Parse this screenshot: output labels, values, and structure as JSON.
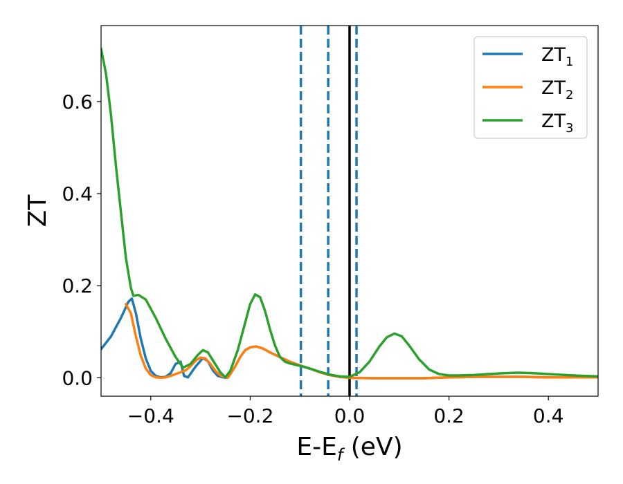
{
  "chart_data": {
    "type": "line",
    "xlabel": "E-E",
    "xlabel_sub": "f",
    "xlabel_unit": " (eV)",
    "ylabel": "ZT",
    "xlim": [
      -0.5,
      0.5
    ],
    "ylim": [
      -0.04,
      0.765
    ],
    "xticks": [
      -0.4,
      -0.2,
      0.0,
      0.2,
      0.4
    ],
    "xtick_labels": [
      "−0.4",
      "−0.2",
      "0.0",
      "0.2",
      "0.4"
    ],
    "yticks": [
      0.0,
      0.2,
      0.4,
      0.6
    ],
    "ytick_labels": [
      "0.0",
      "0.2",
      "0.4",
      "0.6"
    ],
    "grid": false,
    "legend_position": "top-right",
    "vertical_lines": [
      {
        "x": -0.098,
        "style": "dashed",
        "color": "#1f77b4"
      },
      {
        "x": -0.043,
        "style": "dashed",
        "color": "#1f77b4"
      },
      {
        "x": 0.0,
        "style": "solid",
        "color": "#000000"
      },
      {
        "x": 0.014,
        "style": "dashed",
        "color": "#1f77b4"
      }
    ],
    "series": [
      {
        "name": "ZT",
        "name_sub": "1",
        "color": "#1f77b4",
        "points": [
          [
            -0.5,
            0.062
          ],
          [
            -0.48,
            0.09
          ],
          [
            -0.46,
            0.13
          ],
          [
            -0.445,
            0.165
          ],
          [
            -0.438,
            0.172
          ],
          [
            -0.43,
            0.14
          ],
          [
            -0.42,
            0.085
          ],
          [
            -0.41,
            0.042
          ],
          [
            -0.4,
            0.015
          ],
          [
            -0.39,
            0.004
          ],
          [
            -0.38,
            0.001
          ],
          [
            -0.37,
            0.002
          ],
          [
            -0.36,
            0.01
          ],
          [
            -0.35,
            0.03
          ],
          [
            -0.34,
            0.035
          ],
          [
            -0.333,
            0.004
          ],
          [
            -0.325,
            0.001
          ],
          [
            -0.31,
            0.024
          ],
          [
            -0.295,
            0.043
          ],
          [
            -0.285,
            0.036
          ],
          [
            -0.275,
            0.016
          ],
          [
            -0.265,
            0.004
          ],
          [
            -0.255,
            0.001
          ],
          [
            -0.248,
            0.0
          ],
          [
            -0.24,
            0.008
          ],
          [
            -0.23,
            0.025
          ],
          [
            -0.22,
            0.045
          ],
          [
            -0.21,
            0.06
          ],
          [
            -0.2,
            0.066
          ],
          [
            -0.188,
            0.068
          ],
          [
            -0.175,
            0.064
          ],
          [
            -0.16,
            0.055
          ],
          [
            -0.14,
            0.045
          ],
          [
            -0.12,
            0.035
          ],
          [
            -0.1,
            0.027
          ],
          [
            -0.08,
            0.02
          ],
          [
            -0.06,
            0.012
          ],
          [
            -0.04,
            0.006
          ],
          [
            -0.02,
            0.002
          ],
          [
            0.0,
            0.0
          ],
          [
            0.05,
            -0.001
          ],
          [
            0.1,
            -0.001
          ],
          [
            0.15,
            -0.001
          ],
          [
            0.2,
            0.001
          ],
          [
            0.25,
            0.002
          ],
          [
            0.3,
            0.002
          ],
          [
            0.35,
            0.002
          ],
          [
            0.4,
            0.001
          ],
          [
            0.45,
            0.001
          ],
          [
            0.5,
            0.001
          ]
        ]
      },
      {
        "name": "ZT",
        "name_sub": "2",
        "color": "#ff7f0e",
        "points": [
          [
            -0.45,
            0.16
          ],
          [
            -0.44,
            0.14
          ],
          [
            -0.43,
            0.09
          ],
          [
            -0.42,
            0.048
          ],
          [
            -0.41,
            0.02
          ],
          [
            -0.4,
            0.006
          ],
          [
            -0.39,
            0.001
          ],
          [
            -0.38,
            0.0
          ],
          [
            -0.37,
            0.001
          ],
          [
            -0.36,
            0.004
          ],
          [
            -0.35,
            0.008
          ],
          [
            -0.34,
            0.012
          ],
          [
            -0.33,
            0.016
          ],
          [
            -0.32,
            0.025
          ],
          [
            -0.31,
            0.037
          ],
          [
            -0.3,
            0.044
          ],
          [
            -0.29,
            0.042
          ],
          [
            -0.28,
            0.03
          ],
          [
            -0.27,
            0.015
          ],
          [
            -0.26,
            0.005
          ],
          [
            -0.25,
            0.001
          ],
          [
            -0.245,
            0.0
          ],
          [
            -0.24,
            0.008
          ],
          [
            -0.23,
            0.025
          ],
          [
            -0.22,
            0.045
          ],
          [
            -0.21,
            0.06
          ],
          [
            -0.2,
            0.066
          ],
          [
            -0.188,
            0.068
          ],
          [
            -0.175,
            0.064
          ],
          [
            -0.16,
            0.055
          ],
          [
            -0.14,
            0.045
          ],
          [
            -0.12,
            0.035
          ],
          [
            -0.1,
            0.027
          ],
          [
            -0.08,
            0.02
          ],
          [
            -0.06,
            0.012
          ],
          [
            -0.04,
            0.006
          ],
          [
            -0.02,
            0.002
          ],
          [
            0.0,
            0.0
          ],
          [
            0.05,
            -0.001
          ],
          [
            0.1,
            -0.001
          ],
          [
            0.15,
            -0.001
          ],
          [
            0.2,
            0.001
          ],
          [
            0.25,
            0.002
          ],
          [
            0.3,
            0.002
          ],
          [
            0.35,
            0.002
          ],
          [
            0.4,
            0.001
          ],
          [
            0.45,
            0.001
          ],
          [
            0.5,
            0.001
          ]
        ]
      },
      {
        "name": "ZT",
        "name_sub": "3",
        "color": "#2ca02c",
        "points": [
          [
            -0.5,
            0.715
          ],
          [
            -0.49,
            0.66
          ],
          [
            -0.48,
            0.57
          ],
          [
            -0.47,
            0.46
          ],
          [
            -0.46,
            0.36
          ],
          [
            -0.45,
            0.26
          ],
          [
            -0.44,
            0.195
          ],
          [
            -0.435,
            0.178
          ],
          [
            -0.425,
            0.18
          ],
          [
            -0.41,
            0.17
          ],
          [
            -0.39,
            0.13
          ],
          [
            -0.37,
            0.085
          ],
          [
            -0.35,
            0.045
          ],
          [
            -0.335,
            0.022
          ],
          [
            -0.32,
            0.03
          ],
          [
            -0.305,
            0.05
          ],
          [
            -0.295,
            0.06
          ],
          [
            -0.285,
            0.055
          ],
          [
            -0.275,
            0.038
          ],
          [
            -0.26,
            0.012
          ],
          [
            -0.25,
            0.001
          ],
          [
            -0.24,
            0.015
          ],
          [
            -0.225,
            0.06
          ],
          [
            -0.21,
            0.12
          ],
          [
            -0.2,
            0.16
          ],
          [
            -0.19,
            0.181
          ],
          [
            -0.18,
            0.175
          ],
          [
            -0.17,
            0.145
          ],
          [
            -0.16,
            0.105
          ],
          [
            -0.15,
            0.07
          ],
          [
            -0.14,
            0.045
          ],
          [
            -0.13,
            0.035
          ],
          [
            -0.12,
            0.031
          ],
          [
            -0.1,
            0.026
          ],
          [
            -0.08,
            0.02
          ],
          [
            -0.06,
            0.013
          ],
          [
            -0.04,
            0.007
          ],
          [
            -0.02,
            0.003
          ],
          [
            0.0,
            0.002
          ],
          [
            0.02,
            0.012
          ],
          [
            0.04,
            0.035
          ],
          [
            0.06,
            0.068
          ],
          [
            0.075,
            0.088
          ],
          [
            0.09,
            0.096
          ],
          [
            0.105,
            0.09
          ],
          [
            0.12,
            0.07
          ],
          [
            0.14,
            0.04
          ],
          [
            0.16,
            0.018
          ],
          [
            0.18,
            0.008
          ],
          [
            0.2,
            0.005
          ],
          [
            0.22,
            0.005
          ],
          [
            0.25,
            0.006
          ],
          [
            0.28,
            0.008
          ],
          [
            0.31,
            0.01
          ],
          [
            0.34,
            0.011
          ],
          [
            0.37,
            0.01
          ],
          [
            0.4,
            0.008
          ],
          [
            0.45,
            0.005
          ],
          [
            0.5,
            0.003
          ]
        ]
      }
    ]
  }
}
